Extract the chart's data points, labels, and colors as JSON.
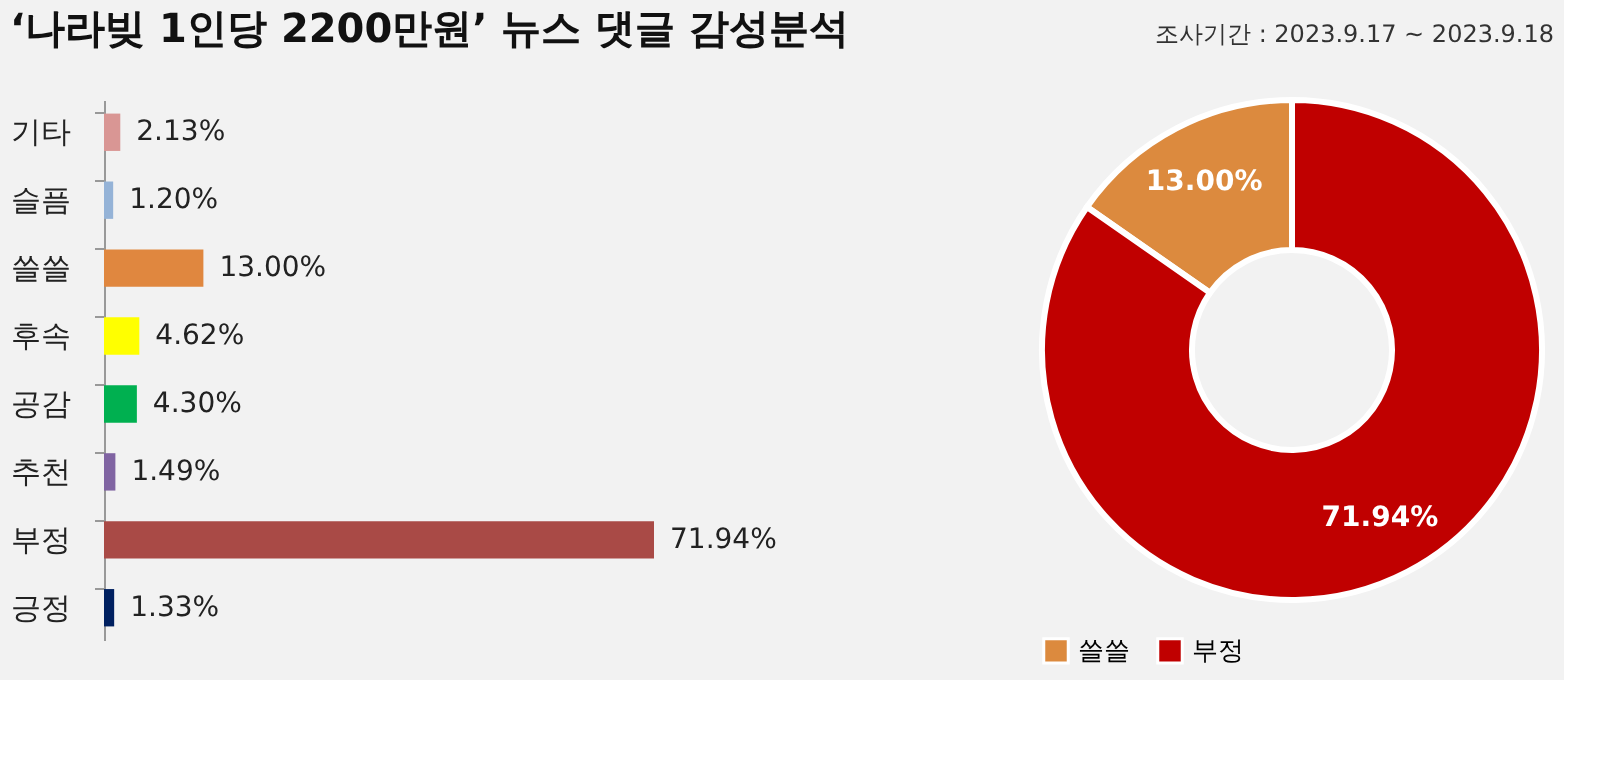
{
  "chart_data": [
    {
      "type": "bar",
      "orientation": "horizontal",
      "title": "‘나라빚 1인당 2200만원’ 뉴스 댓글 감성분석",
      "categories": [
        "기타",
        "슬픔",
        "쓸쓸",
        "후속",
        "공감",
        "추천",
        "부정",
        "긍정"
      ],
      "values": [
        2.13,
        1.2,
        13.0,
        4.62,
        4.3,
        1.49,
        71.94,
        1.33
      ],
      "value_labels": [
        "2.13%",
        "1.20%",
        "13.00%",
        "4.62%",
        "4.30%",
        "1.49%",
        "71.94%",
        "1.33%"
      ],
      "colors": [
        "#d99694",
        "#95b3d7",
        "#e0873f",
        "#ffff00",
        "#00b050",
        "#8064a2",
        "#a94a46",
        "#002060"
      ],
      "tick_labels": "y"
    },
    {
      "type": "donut",
      "annotations": [
        "조사기간 : 2023.9.17 ~ 2023.9.18"
      ],
      "categories": [
        "쓸쓸",
        "부정"
      ],
      "values": [
        13.0,
        71.94
      ],
      "value_labels": [
        "13.00%",
        "71.94%"
      ],
      "colors": [
        "#dc8a3e",
        "#c00000"
      ],
      "legend": "bottom"
    }
  ]
}
